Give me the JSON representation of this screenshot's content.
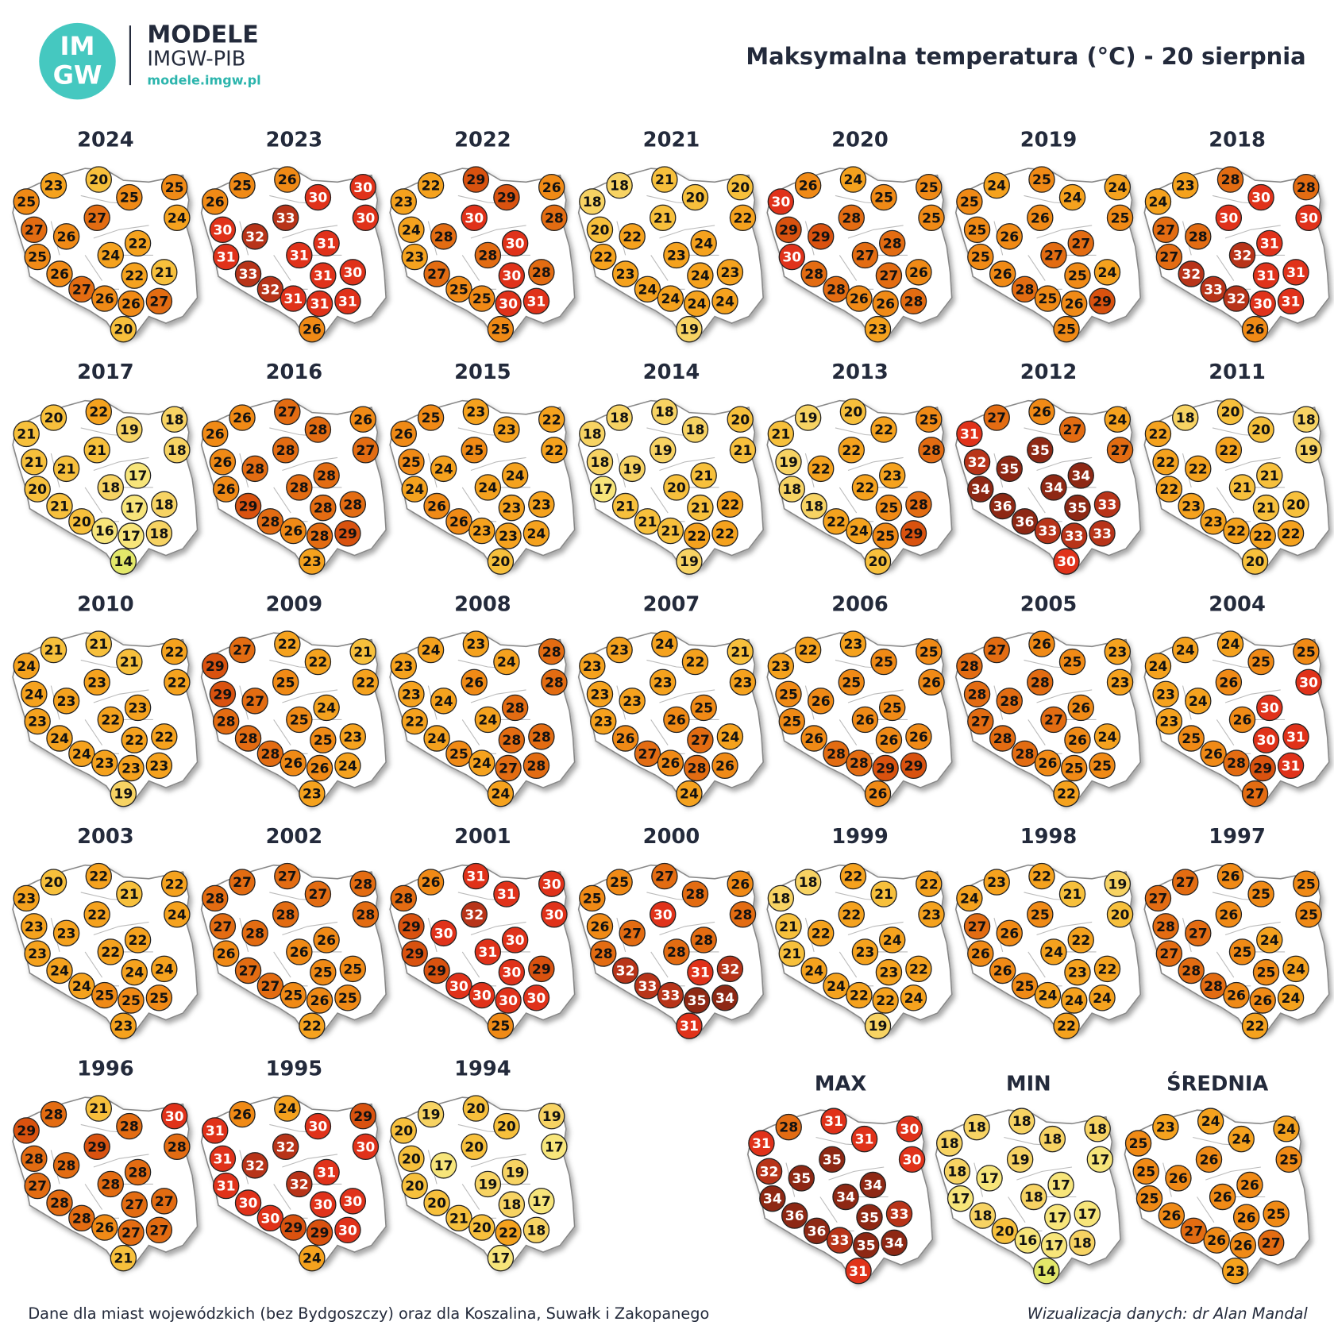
{
  "header": {
    "logo": [
      "IM",
      "GW"
    ],
    "brand": "MODELE",
    "org": "IMGW-PIB",
    "url": "modele.imgw.pl"
  },
  "title": "Maksymalna temperatura (°C) - 20 sierpnia",
  "panels": [
    {
      "label": "2024",
      "values": [
        25,
        23,
        20,
        25,
        25,
        24,
        27,
        26,
        27,
        22,
        25,
        24,
        26,
        22,
        21,
        27,
        26,
        26,
        27,
        20
      ]
    },
    {
      "label": "2023",
      "values": [
        26,
        25,
        26,
        30,
        30,
        30,
        30,
        32,
        33,
        31,
        31,
        31,
        33,
        31,
        30,
        32,
        31,
        31,
        31,
        26
      ]
    },
    {
      "label": "2022",
      "values": [
        23,
        22,
        29,
        29,
        26,
        28,
        24,
        28,
        30,
        30,
        23,
        28,
        27,
        30,
        28,
        25,
        25,
        30,
        31,
        25
      ]
    },
    {
      "label": "2021",
      "values": [
        18,
        18,
        21,
        20,
        20,
        22,
        20,
        22,
        21,
        24,
        22,
        23,
        23,
        24,
        23,
        24,
        24,
        24,
        24,
        19
      ]
    },
    {
      "label": "2020",
      "values": [
        30,
        26,
        24,
        25,
        25,
        25,
        29,
        29,
        28,
        28,
        30,
        27,
        28,
        27,
        26,
        28,
        26,
        26,
        28,
        23
      ]
    },
    {
      "label": "2019",
      "values": [
        25,
        24,
        25,
        24,
        24,
        25,
        25,
        26,
        26,
        27,
        25,
        27,
        26,
        25,
        24,
        28,
        25,
        26,
        29,
        25
      ]
    },
    {
      "label": "2018",
      "values": [
        24,
        23,
        28,
        30,
        28,
        30,
        27,
        28,
        30,
        31,
        27,
        32,
        32,
        31,
        31,
        33,
        32,
        30,
        31,
        26
      ]
    },
    {
      "label": "2017",
      "values": [
        21,
        20,
        22,
        19,
        18,
        18,
        21,
        21,
        21,
        17,
        20,
        18,
        21,
        17,
        18,
        20,
        16,
        17,
        18,
        14
      ]
    },
    {
      "label": "2016",
      "values": [
        26,
        26,
        27,
        28,
        26,
        27,
        26,
        28,
        28,
        28,
        26,
        28,
        29,
        28,
        28,
        28,
        26,
        28,
        29,
        23
      ]
    },
    {
      "label": "2015",
      "values": [
        26,
        25,
        23,
        23,
        22,
        22,
        25,
        24,
        25,
        24,
        24,
        24,
        26,
        23,
        23,
        26,
        23,
        23,
        24,
        20
      ]
    },
    {
      "label": "2014",
      "values": [
        18,
        18,
        18,
        18,
        20,
        21,
        18,
        19,
        19,
        21,
        17,
        20,
        21,
        21,
        22,
        21,
        21,
        22,
        22,
        19
      ]
    },
    {
      "label": "2013",
      "values": [
        21,
        19,
        20,
        22,
        25,
        28,
        19,
        22,
        22,
        23,
        18,
        22,
        18,
        25,
        28,
        22,
        24,
        25,
        29,
        20
      ]
    },
    {
      "label": "2012",
      "values": [
        31,
        27,
        26,
        27,
        24,
        27,
        32,
        35,
        35,
        34,
        34,
        34,
        36,
        35,
        33,
        36,
        33,
        33,
        33,
        30
      ]
    },
    {
      "label": "2011",
      "values": [
        22,
        18,
        20,
        20,
        18,
        19,
        22,
        22,
        22,
        21,
        22,
        21,
        23,
        21,
        20,
        23,
        22,
        22,
        22,
        20
      ]
    },
    {
      "label": "2010",
      "values": [
        24,
        21,
        21,
        21,
        22,
        22,
        24,
        23,
        23,
        23,
        23,
        22,
        24,
        22,
        22,
        24,
        23,
        23,
        23,
        19
      ]
    },
    {
      "label": "2009",
      "values": [
        29,
        27,
        22,
        22,
        21,
        22,
        29,
        27,
        25,
        24,
        28,
        25,
        28,
        25,
        23,
        28,
        26,
        26,
        24,
        23
      ]
    },
    {
      "label": "2008",
      "values": [
        23,
        24,
        23,
        24,
        28,
        28,
        23,
        24,
        26,
        28,
        22,
        24,
        24,
        28,
        28,
        25,
        24,
        27,
        28,
        24
      ]
    },
    {
      "label": "2007",
      "values": [
        23,
        23,
        24,
        22,
        21,
        23,
        23,
        23,
        23,
        25,
        23,
        26,
        26,
        27,
        24,
        27,
        26,
        28,
        26,
        24
      ]
    },
    {
      "label": "2006",
      "values": [
        23,
        22,
        23,
        25,
        25,
        26,
        25,
        26,
        25,
        25,
        25,
        26,
        26,
        26,
        26,
        28,
        28,
        29,
        29,
        26
      ]
    },
    {
      "label": "2005",
      "values": [
        28,
        27,
        26,
        25,
        23,
        23,
        28,
        28,
        28,
        26,
        27,
        27,
        28,
        26,
        24,
        28,
        26,
        25,
        25,
        22
      ]
    },
    {
      "label": "2004",
      "values": [
        24,
        24,
        24,
        25,
        25,
        30,
        23,
        24,
        26,
        30,
        23,
        26,
        25,
        30,
        31,
        26,
        28,
        29,
        31,
        27
      ]
    },
    {
      "label": "2003",
      "values": [
        23,
        20,
        22,
        21,
        22,
        24,
        23,
        23,
        22,
        22,
        23,
        22,
        24,
        24,
        24,
        24,
        25,
        25,
        25,
        23
      ]
    },
    {
      "label": "2002",
      "values": [
        28,
        27,
        27,
        27,
        28,
        28,
        27,
        28,
        28,
        26,
        26,
        26,
        27,
        25,
        25,
        27,
        25,
        26,
        25,
        22
      ]
    },
    {
      "label": "2001",
      "values": [
        28,
        26,
        31,
        31,
        30,
        30,
        29,
        30,
        32,
        30,
        29,
        31,
        29,
        30,
        29,
        30,
        30,
        30,
        30,
        25
      ]
    },
    {
      "label": "2000",
      "values": [
        25,
        25,
        27,
        28,
        26,
        28,
        26,
        27,
        30,
        28,
        28,
        28,
        32,
        31,
        32,
        33,
        33,
        35,
        34,
        31
      ]
    },
    {
      "label": "1999",
      "values": [
        18,
        18,
        22,
        21,
        22,
        23,
        21,
        22,
        22,
        24,
        21,
        23,
        24,
        23,
        22,
        24,
        22,
        22,
        24,
        19
      ]
    },
    {
      "label": "1998",
      "values": [
        24,
        23,
        22,
        21,
        19,
        20,
        27,
        26,
        25,
        22,
        26,
        24,
        26,
        23,
        22,
        25,
        24,
        24,
        24,
        22
      ]
    },
    {
      "label": "1997",
      "values": [
        27,
        27,
        26,
        25,
        25,
        25,
        28,
        27,
        26,
        24,
        27,
        25,
        28,
        25,
        24,
        28,
        26,
        26,
        24,
        22
      ]
    },
    {
      "label": "1996",
      "values": [
        29,
        28,
        21,
        28,
        30,
        28,
        28,
        28,
        29,
        28,
        27,
        28,
        28,
        27,
        27,
        28,
        26,
        27,
        27,
        21
      ]
    },
    {
      "label": "1995",
      "values": [
        31,
        26,
        24,
        30,
        29,
        30,
        31,
        32,
        32,
        31,
        31,
        32,
        30,
        30,
        30,
        30,
        29,
        29,
        30,
        24
      ]
    },
    {
      "label": "1994",
      "values": [
        20,
        19,
        20,
        20,
        19,
        17,
        20,
        17,
        20,
        19,
        20,
        19,
        20,
        18,
        17,
        21,
        20,
        22,
        18,
        17
      ]
    }
  ],
  "summary": [
    {
      "label": "MAX",
      "values": [
        31,
        28,
        31,
        31,
        30,
        30,
        32,
        35,
        35,
        34,
        34,
        34,
        36,
        35,
        33,
        36,
        33,
        35,
        34,
        31
      ]
    },
    {
      "label": "MIN",
      "values": [
        18,
        18,
        18,
        18,
        18,
        17,
        18,
        17,
        19,
        17,
        17,
        18,
        18,
        17,
        17,
        20,
        16,
        17,
        18,
        14
      ]
    },
    {
      "label": "ŚREDNIA",
      "values": [
        25,
        23,
        24,
        24,
        24,
        25,
        25,
        26,
        26,
        26,
        25,
        26,
        26,
        26,
        25,
        27,
        26,
        26,
        27,
        23
      ]
    }
  ],
  "footer": {
    "source": "Dane dla miast wojewódzkich (bez Bydgoszczy) oraz dla Koszalina, Suwałk i Zakopanego",
    "credit": "Wizualizacja danych: dr Alan Mandal"
  }
}
